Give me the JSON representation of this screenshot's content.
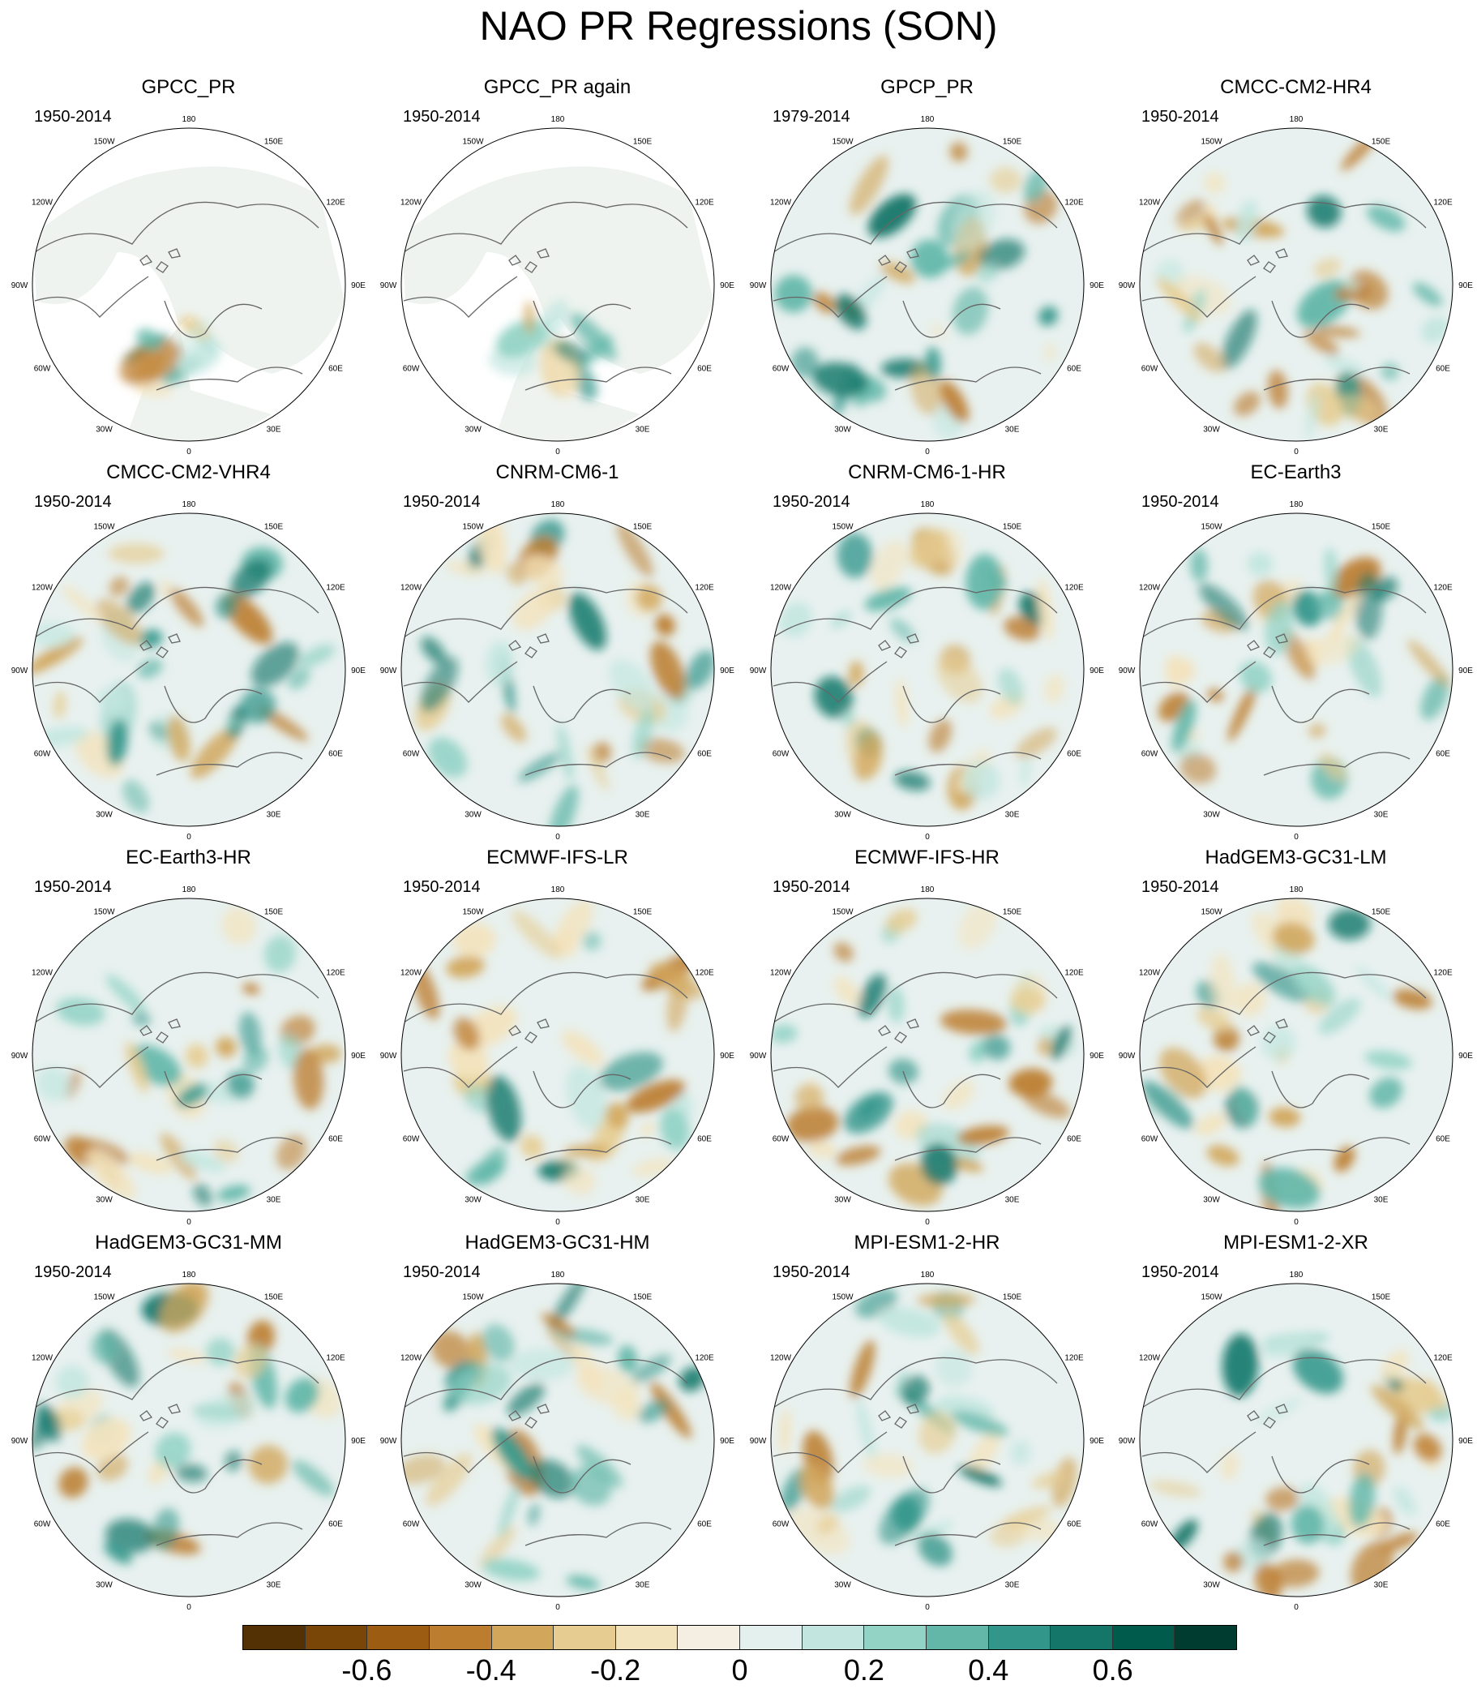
{
  "title": "NAO PR Regressions (SON)",
  "longitude_labels": [
    "180",
    "150E",
    "120E",
    "90E",
    "60E",
    "30E",
    "0",
    "30W",
    "60W",
    "90W",
    "120W",
    "150W"
  ],
  "panels": [
    {
      "title": "GPCC_PR",
      "period": "1950-2014",
      "pattern": "obs"
    },
    {
      "title": "GPCC_PR again",
      "period": "1950-2014",
      "pattern": "obs"
    },
    {
      "title": "GPCP_PR",
      "period": "1979-2014",
      "pattern": "full"
    },
    {
      "title": "CMCC-CM2-HR4",
      "period": "1950-2014",
      "pattern": "full"
    },
    {
      "title": "CMCC-CM2-VHR4",
      "period": "1950-2014",
      "pattern": "full"
    },
    {
      "title": "CNRM-CM6-1",
      "period": "1950-2014",
      "pattern": "full"
    },
    {
      "title": "CNRM-CM6-1-HR",
      "period": "1950-2014",
      "pattern": "full"
    },
    {
      "title": "EC-Earth3",
      "period": "1950-2014",
      "pattern": "full"
    },
    {
      "title": "EC-Earth3-HR",
      "period": "1950-2014",
      "pattern": "full"
    },
    {
      "title": "ECMWF-IFS-LR",
      "period": "1950-2014",
      "pattern": "full"
    },
    {
      "title": "ECMWF-IFS-HR",
      "period": "1950-2014",
      "pattern": "full"
    },
    {
      "title": "HadGEM3-GC31-LM",
      "period": "1950-2014",
      "pattern": "full"
    },
    {
      "title": "HadGEM3-GC31-MM",
      "period": "1950-2014",
      "pattern": "full"
    },
    {
      "title": "HadGEM3-GC31-HM",
      "period": "1950-2014",
      "pattern": "full"
    },
    {
      "title": "MPI-ESM1-2-HR",
      "period": "1950-2014",
      "pattern": "full"
    },
    {
      "title": "MPI-ESM1-2-XR",
      "period": "1950-2014",
      "pattern": "full"
    }
  ],
  "colorbar": {
    "colors": [
      "#543005",
      "#7a4608",
      "#9c5d12",
      "#bc7d2f",
      "#d2a75c",
      "#e6cc91",
      "#f3e3bd",
      "#f4efe2",
      "#e3f0ee",
      "#c2e6df",
      "#93d3c6",
      "#62b7a9",
      "#33968b",
      "#137669",
      "#015b4c",
      "#003c30"
    ],
    "labels": [
      "-0.6",
      "-0.4",
      "-0.2",
      "0",
      "0.2",
      "0.4",
      "0.6"
    ]
  }
}
